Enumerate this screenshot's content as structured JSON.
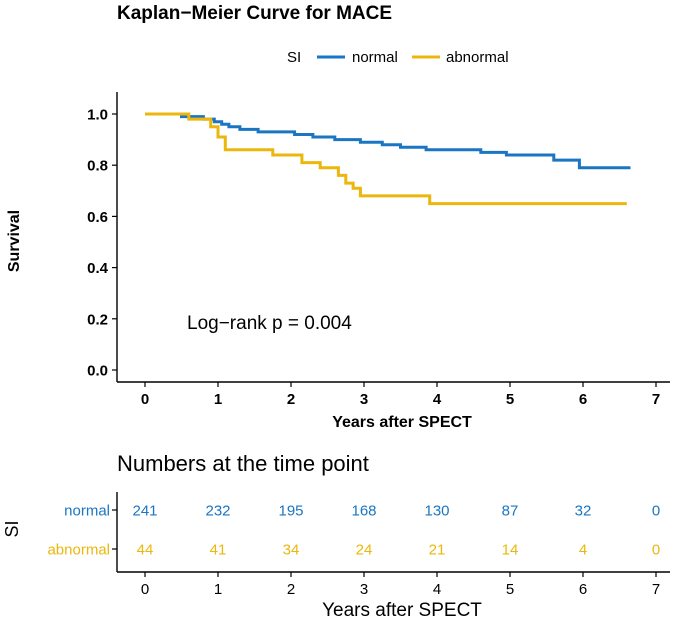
{
  "chart_data": [
    {
      "type": "line",
      "subtype": "kaplan-meier-step",
      "title": "Kaplan−Meier Curve for MACE",
      "xlabel": "Years after SPECT",
      "ylabel": "Survival",
      "xlim": [
        0,
        7
      ],
      "ylim": [
        0,
        1
      ],
      "xticks": [
        "0",
        "1",
        "2",
        "3",
        "4",
        "5",
        "6",
        "7"
      ],
      "yticks": [
        "0.0",
        "0.2",
        "0.4",
        "0.6",
        "0.8",
        "1.0"
      ],
      "legend": {
        "title": "SI",
        "position": "top-center",
        "items": [
          "normal",
          "abnormal"
        ]
      },
      "annotation": "Log−rank p = 0.004",
      "series": [
        {
          "name": "normal",
          "color": "#1a76c2",
          "points": [
            [
              0,
              1.0
            ],
            [
              0.5,
              1.0
            ],
            [
              0.5,
              0.99
            ],
            [
              0.8,
              0.99
            ],
            [
              0.8,
              0.98
            ],
            [
              0.95,
              0.98
            ],
            [
              0.95,
              0.97
            ],
            [
              1.05,
              0.97
            ],
            [
              1.05,
              0.96
            ],
            [
              1.15,
              0.96
            ],
            [
              1.15,
              0.95
            ],
            [
              1.3,
              0.95
            ],
            [
              1.3,
              0.94
            ],
            [
              1.55,
              0.94
            ],
            [
              1.55,
              0.93
            ],
            [
              2.05,
              0.93
            ],
            [
              2.05,
              0.92
            ],
            [
              2.3,
              0.92
            ],
            [
              2.3,
              0.91
            ],
            [
              2.6,
              0.91
            ],
            [
              2.6,
              0.9
            ],
            [
              2.95,
              0.9
            ],
            [
              2.95,
              0.89
            ],
            [
              3.25,
              0.89
            ],
            [
              3.25,
              0.88
            ],
            [
              3.5,
              0.88
            ],
            [
              3.5,
              0.87
            ],
            [
              3.85,
              0.87
            ],
            [
              3.85,
              0.86
            ],
            [
              4.6,
              0.86
            ],
            [
              4.6,
              0.85
            ],
            [
              4.95,
              0.85
            ],
            [
              4.95,
              0.84
            ],
            [
              5.6,
              0.84
            ],
            [
              5.6,
              0.82
            ],
            [
              5.95,
              0.82
            ],
            [
              5.95,
              0.79
            ],
            [
              6.65,
              0.79
            ]
          ]
        },
        {
          "name": "abnormal",
          "color": "#ebb70d",
          "points": [
            [
              0,
              1.0
            ],
            [
              0.6,
              1.0
            ],
            [
              0.6,
              0.98
            ],
            [
              0.9,
              0.98
            ],
            [
              0.9,
              0.95
            ],
            [
              1.0,
              0.95
            ],
            [
              1.0,
              0.91
            ],
            [
              1.1,
              0.91
            ],
            [
              1.1,
              0.86
            ],
            [
              1.75,
              0.86
            ],
            [
              1.75,
              0.84
            ],
            [
              2.15,
              0.84
            ],
            [
              2.15,
              0.81
            ],
            [
              2.4,
              0.81
            ],
            [
              2.4,
              0.79
            ],
            [
              2.65,
              0.79
            ],
            [
              2.65,
              0.76
            ],
            [
              2.75,
              0.76
            ],
            [
              2.75,
              0.73
            ],
            [
              2.85,
              0.73
            ],
            [
              2.85,
              0.71
            ],
            [
              2.95,
              0.71
            ],
            [
              2.95,
              0.68
            ],
            [
              3.9,
              0.68
            ],
            [
              3.9,
              0.65
            ],
            [
              6.6,
              0.65
            ]
          ]
        }
      ]
    },
    {
      "type": "table",
      "title": "Numbers at the time point",
      "xlabel": "Years after SPECT",
      "ylabel": "SI",
      "xlim": [
        0,
        7
      ],
      "xticks": [
        "0",
        "1",
        "2",
        "3",
        "4",
        "5",
        "6",
        "7"
      ],
      "series": [
        {
          "name": "normal",
          "color": "#1a76c2",
          "values": [
            "241",
            "232",
            "195",
            "168",
            "130",
            "87",
            "32",
            "0"
          ]
        },
        {
          "name": "abnormal",
          "color": "#ebb70d",
          "values": [
            "44",
            "41",
            "34",
            "24",
            "21",
            "14",
            "4",
            "0"
          ]
        }
      ]
    }
  ]
}
